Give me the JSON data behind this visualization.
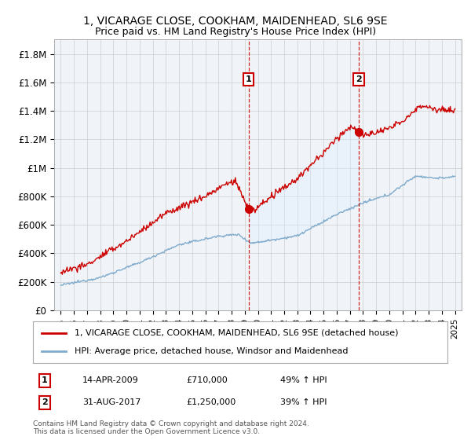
{
  "title": "1, VICARAGE CLOSE, COOKHAM, MAIDENHEAD, SL6 9SE",
  "subtitle": "Price paid vs. HM Land Registry's House Price Index (HPI)",
  "legend_line1": "1, VICARAGE CLOSE, COOKHAM, MAIDENHEAD, SL6 9SE (detached house)",
  "legend_line2": "HPI: Average price, detached house, Windsor and Maidenhead",
  "footer": "Contains HM Land Registry data © Crown copyright and database right 2024.\nThis data is licensed under the Open Government Licence v3.0.",
  "annotation1_label": "1",
  "annotation1_date": "14-APR-2009",
  "annotation1_price": "£710,000",
  "annotation1_hpi": "49% ↑ HPI",
  "annotation2_label": "2",
  "annotation2_date": "31-AUG-2017",
  "annotation2_price": "£1,250,000",
  "annotation2_hpi": "39% ↑ HPI",
  "sale1_x": 2009.29,
  "sale1_y": 710000,
  "sale2_x": 2017.67,
  "sale2_y": 1250000,
  "ylim": [
    0,
    1900000
  ],
  "xlim": [
    1994.5,
    2025.5
  ],
  "red_color": "#cc0000",
  "blue_color": "#7faacc",
  "fill_color": "#ddeeff",
  "grid_color": "#cccccc",
  "bg_color": "#f0f4f8",
  "yticks": [
    0,
    200000,
    400000,
    600000,
    800000,
    1000000,
    1200000,
    1400000,
    1600000,
    1800000
  ],
  "ytick_labels": [
    "£0",
    "£200K",
    "£400K",
    "£600K",
    "£800K",
    "£1M",
    "£1.2M",
    "£1.4M",
    "£1.6M",
    "£1.8M"
  ]
}
